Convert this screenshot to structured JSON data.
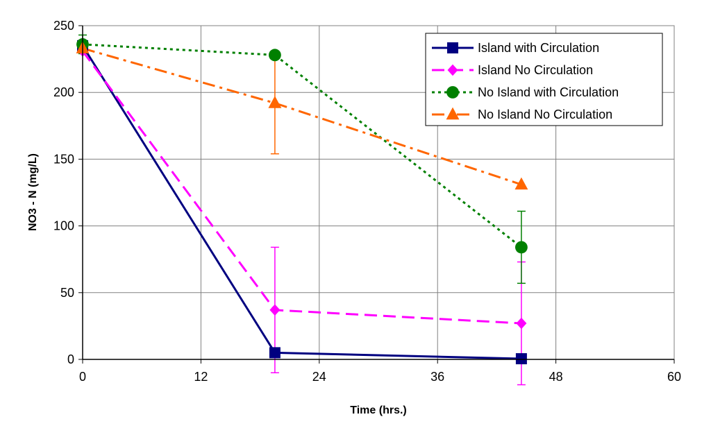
{
  "chart_data": {
    "type": "line",
    "title": "",
    "xlabel": "Time (hrs.)",
    "ylabel": "NO3 - N (mg/L)",
    "xlim": [
      0,
      60
    ],
    "ylim": [
      0,
      250
    ],
    "xticks": [
      0,
      12,
      24,
      36,
      48,
      60
    ],
    "yticks": [
      0,
      50,
      100,
      150,
      200,
      250
    ],
    "grid": true,
    "legend_position": "top-right",
    "series": [
      {
        "name": "Island with Circulation",
        "color": "#000080",
        "marker": "square",
        "dash": "solid",
        "x": [
          0,
          19.5,
          44.5
        ],
        "y": [
          235,
          5,
          0.5
        ],
        "error": [
          null,
          null,
          null
        ]
      },
      {
        "name": "Island No Circulation",
        "color": "#ff00ff",
        "marker": "diamond",
        "dash": "long-dash",
        "x": [
          0,
          19.5,
          44.5
        ],
        "y": [
          231,
          37,
          27
        ],
        "error": [
          null,
          47,
          46
        ]
      },
      {
        "name": "No Island with Circulation",
        "color": "#008000",
        "marker": "circle",
        "dash": "dotted",
        "x": [
          0,
          19.5,
          44.5
        ],
        "y": [
          236,
          228,
          84
        ],
        "error": [
          7,
          null,
          27
        ]
      },
      {
        "name": "No Island No Circulation",
        "color": "#ff6600",
        "marker": "triangle",
        "dash": "dash-dot",
        "x": [
          0,
          19.5,
          44.5
        ],
        "y": [
          233,
          192,
          131
        ],
        "error": [
          null,
          38,
          null
        ]
      }
    ]
  }
}
